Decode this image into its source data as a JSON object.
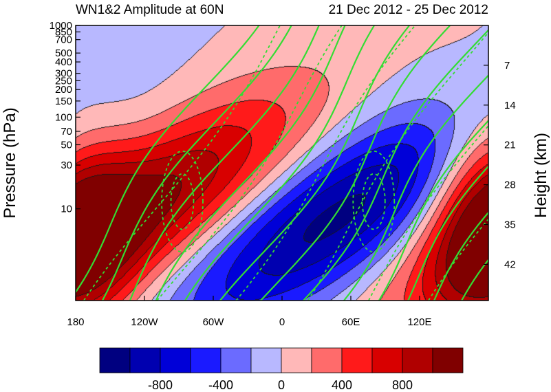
{
  "chart_data": {
    "type": "heatmap",
    "title": "WN1&2 Amplitude at 60N",
    "subtitle": "21 Dec 2012 - 25 Dec 2012",
    "xlabel": "",
    "ylabel": "Pressure (hPa)",
    "ylabel_right": "Height (km)",
    "x_range": [
      -180,
      180
    ],
    "x_ticks": [
      {
        "value": -180,
        "label": "180"
      },
      {
        "value": -120,
        "label": "120W"
      },
      {
        "value": -60,
        "label": "60W"
      },
      {
        "value": 0,
        "label": "0"
      },
      {
        "value": 60,
        "label": "60E"
      },
      {
        "value": 120,
        "label": "120E"
      }
    ],
    "y_scale": "log",
    "y_range_hPa": [
      1000,
      1
    ],
    "y_ticks_left": [
      {
        "value": 10,
        "label": "10"
      },
      {
        "value": 30,
        "label": "30"
      },
      {
        "value": 50,
        "label": "50"
      },
      {
        "value": 70,
        "label": "70"
      },
      {
        "value": 100,
        "label": "100"
      },
      {
        "value": 150,
        "label": "150"
      },
      {
        "value": 200,
        "label": "200"
      },
      {
        "value": 250,
        "label": "250"
      },
      {
        "value": 300,
        "label": "300"
      },
      {
        "value": 400,
        "label": "400"
      },
      {
        "value": 500,
        "label": "500"
      },
      {
        "value": 700,
        "label": "700"
      },
      {
        "value": 850,
        "label": "850"
      },
      {
        "value": 1000,
        "label": "1000"
      }
    ],
    "y_ticks_right": [
      {
        "km": 7,
        "label": "7"
      },
      {
        "km": 14,
        "label": "14"
      },
      {
        "km": 21,
        "label": "21"
      },
      {
        "km": 28,
        "label": "28"
      },
      {
        "km": 35,
        "label": "35"
      },
      {
        "km": 42,
        "label": "42"
      }
    ],
    "scale_height_km": 7,
    "fill_levels": [
      -1000,
      -800,
      -600,
      -400,
      -200,
      0,
      200,
      400,
      600,
      800,
      1000
    ],
    "colorbar_colors": [
      "#000080",
      "#0000b0",
      "#0000d8",
      "#1a1aff",
      "#6b6bff",
      "#b8b8ff",
      "#ffb8b8",
      "#ff6b6b",
      "#ff1a1a",
      "#d80000",
      "#b00000",
      "#800000"
    ],
    "colorbar_labels": [
      {
        "value": -800,
        "label": "-800"
      },
      {
        "value": -400,
        "label": "-400"
      },
      {
        "value": 0,
        "label": "0"
      },
      {
        "value": 400,
        "label": "400"
      },
      {
        "value": 800,
        "label": "800"
      }
    ],
    "line_color": "#33dd33",
    "features": [
      {
        "sign": 1,
        "amp": 1080,
        "lon": -120,
        "p": 10,
        "wx": 65,
        "wz": 0.85,
        "tilt": 85
      },
      {
        "sign": -1,
        "amp": 1080,
        "lon": 45,
        "p": 8,
        "wx": 65,
        "wz": 0.85,
        "tilt": 85
      },
      {
        "sign": 1,
        "amp": 900,
        "lon": 180,
        "p": 8,
        "wx": 35,
        "wz": 0.8,
        "tilt": 0
      }
    ],
    "dashed_contours": [
      {
        "lon": -87,
        "p": 12,
        "rx": 18,
        "ry": 0.55
      },
      {
        "lon": 80,
        "p": 12,
        "rx": 18,
        "ry": 0.55
      }
    ]
  }
}
